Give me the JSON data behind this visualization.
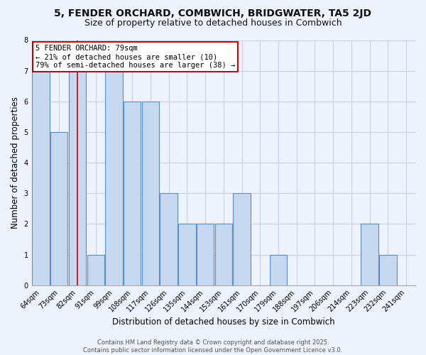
{
  "title_line1": "5, FENDER ORCHARD, COMBWICH, BRIDGWATER, TA5 2JD",
  "title_line2": "Size of property relative to detached houses in Combwich",
  "xlabel": "Distribution of detached houses by size in Combwich",
  "ylabel": "Number of detached properties",
  "categories": [
    "64sqm",
    "73sqm",
    "82sqm",
    "91sqm",
    "99sqm",
    "108sqm",
    "117sqm",
    "126sqm",
    "135sqm",
    "144sqm",
    "153sqm",
    "161sqm",
    "170sqm",
    "179sqm",
    "188sqm",
    "197sqm",
    "206sqm",
    "214sqm",
    "223sqm",
    "232sqm",
    "241sqm"
  ],
  "values": [
    7,
    5,
    7,
    1,
    7,
    6,
    6,
    3,
    2,
    2,
    2,
    3,
    0,
    1,
    0,
    0,
    0,
    0,
    2,
    1,
    0
  ],
  "bar_color": "#c5d8f0",
  "bar_edge_color": "#5b8fc9",
  "subject_bar_index": 2,
  "subject_line_color": "#cc0000",
  "annotation_label": "5 FENDER ORCHARD: 79sqm",
  "annotation_line2": "← 21% of detached houses are smaller (10)",
  "annotation_line3": "79% of semi-detached houses are larger (38) →",
  "annotation_box_facecolor": "#ffffff",
  "annotation_box_edgecolor": "#cc0000",
  "ylim": [
    0,
    8
  ],
  "yticks": [
    0,
    1,
    2,
    3,
    4,
    5,
    6,
    7,
    8
  ],
  "background_color": "#eef2fc",
  "grid_color": "#c8d0e8",
  "footer_line1": "Contains HM Land Registry data © Crown copyright and database right 2025.",
  "footer_line2": "Contains public sector information licensed under the Open Government Licence v3.0.",
  "title_fontsize": 10,
  "subtitle_fontsize": 9,
  "tick_fontsize": 7,
  "ylabel_fontsize": 8.5,
  "xlabel_fontsize": 8.5,
  "annotation_fontsize": 7.5,
  "footer_fontsize": 6
}
